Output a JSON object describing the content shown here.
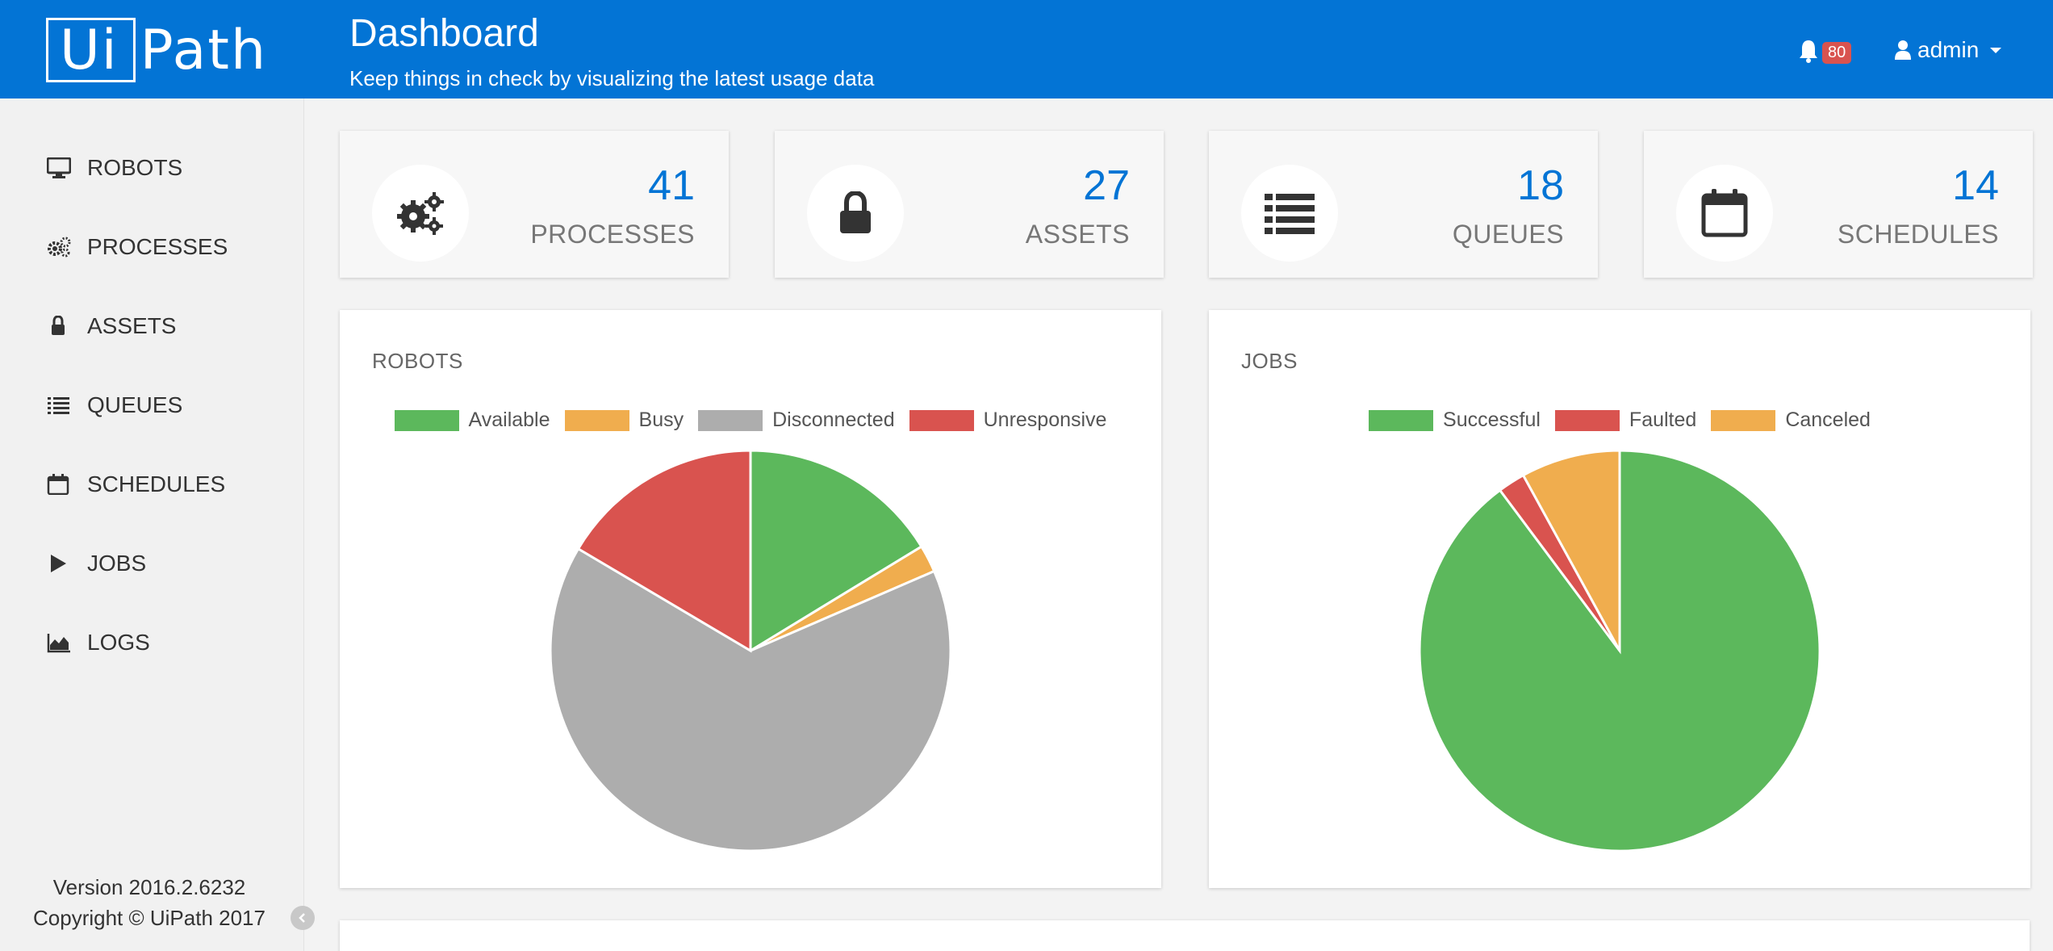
{
  "header": {
    "logo_ui": "Ui",
    "logo_path": "Path",
    "title": "Dashboard",
    "subtitle": "Keep things in check by visualizing the latest usage data",
    "notifications_count": "80",
    "user_name": "admin"
  },
  "sidebar": {
    "items": [
      {
        "label": "ROBOTS",
        "icon": "monitor-icon"
      },
      {
        "label": "PROCESSES",
        "icon": "gears-icon"
      },
      {
        "label": "ASSETS",
        "icon": "lock-icon"
      },
      {
        "label": "QUEUES",
        "icon": "list-icon"
      },
      {
        "label": "SCHEDULES",
        "icon": "calendar-icon"
      },
      {
        "label": "JOBS",
        "icon": "play-icon"
      },
      {
        "label": "LOGS",
        "icon": "area-chart-icon"
      }
    ],
    "version": "Version 2016.2.6232",
    "copyright": "Copyright © UiPath 2017"
  },
  "stats": [
    {
      "value": "41",
      "label": "PROCESSES",
      "icon": "gears-icon"
    },
    {
      "value": "27",
      "label": "ASSETS",
      "icon": "lock-icon"
    },
    {
      "value": "18",
      "label": "QUEUES",
      "icon": "list-icon"
    },
    {
      "value": "14",
      "label": "SCHEDULES",
      "icon": "calendar-icon"
    }
  ],
  "colors": {
    "accent": "#0374d5",
    "green": "#5cb85c",
    "orange": "#f0ad4e",
    "gray": "#adadad",
    "red": "#d9534f"
  },
  "chart_data": [
    {
      "type": "pie",
      "title": "ROBOTS",
      "categories": [
        "Available",
        "Busy",
        "Disconnected",
        "Unresponsive"
      ],
      "values": [
        16.3,
        2.2,
        65,
        16.5
      ],
      "colors": [
        "#5cb85c",
        "#f0ad4e",
        "#adadad",
        "#d9534f"
      ],
      "legend": "top"
    },
    {
      "type": "pie",
      "title": "JOBS",
      "categories": [
        "Successful",
        "Faulted",
        "Canceled"
      ],
      "values": [
        89.8,
        2.2,
        8.0
      ],
      "colors": [
        "#5cb85c",
        "#d9534f",
        "#f0ad4e"
      ],
      "legend": "top"
    }
  ]
}
